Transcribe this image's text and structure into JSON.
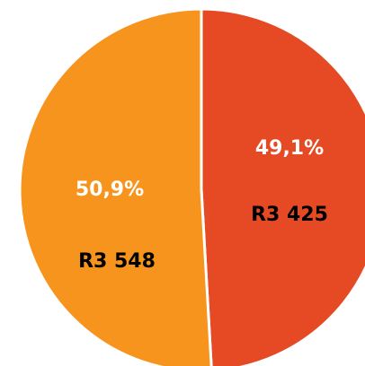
{
  "chart_data": {
    "type": "pie",
    "categories": [
      null,
      null
    ],
    "values": [
      49.1,
      50.9
    ],
    "value_labels": [
      "49,1%",
      "50,9%"
    ],
    "amounts": [
      3425,
      3548
    ],
    "amount_labels": [
      "R3 425",
      "R3 548"
    ],
    "colors": [
      "#e64a25",
      "#f7941d"
    ]
  }
}
